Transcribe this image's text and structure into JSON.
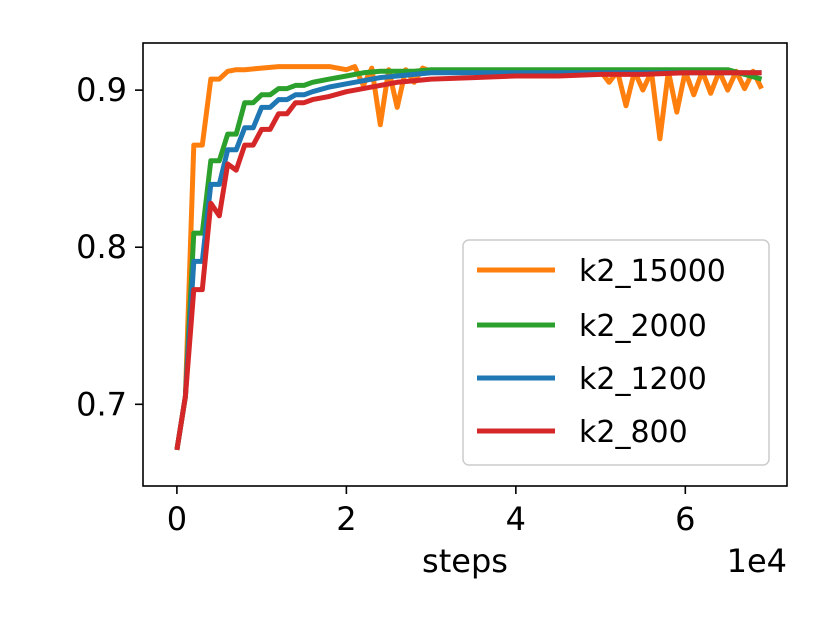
{
  "chart_data": {
    "type": "line",
    "title": "",
    "xlabel": "steps",
    "ylabel": "",
    "x_offset_label": "1e4",
    "xlim": [
      -0.4,
      7.2
    ],
    "ylim": [
      0.648,
      0.93
    ],
    "xticks": [
      0,
      2,
      4,
      6
    ],
    "xtick_labels": [
      "0",
      "2",
      "4",
      "6"
    ],
    "yticks": [
      0.7,
      0.8,
      0.9
    ],
    "ytick_labels": [
      "0.7",
      "0.8",
      "0.9"
    ],
    "grid": false,
    "legend_position": "lower-right",
    "series": [
      {
        "name": "k2_15000",
        "color": "#ff7f0e",
        "x": [
          0,
          0.1,
          0.2,
          0.3,
          0.4,
          0.5,
          0.6,
          0.7,
          0.8,
          1.0,
          1.2,
          1.4,
          1.6,
          1.8,
          2.0,
          2.1,
          2.2,
          2.3,
          2.4,
          2.5,
          2.6,
          2.7,
          2.8,
          2.9,
          3.0,
          3.5,
          4.0,
          4.5,
          5.0,
          5.1,
          5.2,
          5.3,
          5.4,
          5.5,
          5.6,
          5.7,
          5.8,
          5.9,
          6.0,
          6.1,
          6.2,
          6.3,
          6.4,
          6.5,
          6.6,
          6.7,
          6.8,
          6.9
        ],
        "values": [
          0.671,
          0.705,
          0.865,
          0.865,
          0.907,
          0.907,
          0.912,
          0.913,
          0.913,
          0.914,
          0.915,
          0.915,
          0.915,
          0.915,
          0.913,
          0.915,
          0.903,
          0.914,
          0.878,
          0.913,
          0.889,
          0.913,
          0.905,
          0.914,
          0.912,
          0.912,
          0.912,
          0.911,
          0.912,
          0.905,
          0.912,
          0.89,
          0.912,
          0.9,
          0.912,
          0.869,
          0.912,
          0.886,
          0.912,
          0.897,
          0.912,
          0.898,
          0.912,
          0.9,
          0.912,
          0.901,
          0.912,
          0.901
        ]
      },
      {
        "name": "k2_2000",
        "color": "#2ca02c",
        "x": [
          0,
          0.1,
          0.2,
          0.3,
          0.4,
          0.5,
          0.6,
          0.7,
          0.8,
          0.9,
          1.0,
          1.1,
          1.2,
          1.3,
          1.4,
          1.5,
          1.6,
          1.8,
          2.0,
          2.2,
          2.4,
          2.6,
          2.8,
          3.0,
          3.5,
          4.0,
          4.5,
          5.0,
          5.5,
          6.0,
          6.5,
          6.9
        ],
        "values": [
          0.671,
          0.705,
          0.809,
          0.809,
          0.855,
          0.855,
          0.872,
          0.872,
          0.892,
          0.892,
          0.897,
          0.897,
          0.901,
          0.901,
          0.903,
          0.903,
          0.905,
          0.907,
          0.909,
          0.911,
          0.912,
          0.912,
          0.912,
          0.913,
          0.913,
          0.913,
          0.913,
          0.913,
          0.913,
          0.913,
          0.913,
          0.907
        ]
      },
      {
        "name": "k2_1200",
        "color": "#1f77b4",
        "x": [
          0,
          0.1,
          0.2,
          0.3,
          0.4,
          0.5,
          0.6,
          0.7,
          0.8,
          0.9,
          1.0,
          1.1,
          1.2,
          1.3,
          1.4,
          1.5,
          1.6,
          1.8,
          2.0,
          2.2,
          2.4,
          2.6,
          2.8,
          3.0,
          3.5,
          4.0,
          4.5,
          5.0,
          5.5,
          6.0,
          6.5,
          6.9
        ],
        "values": [
          0.671,
          0.705,
          0.791,
          0.791,
          0.84,
          0.84,
          0.862,
          0.862,
          0.876,
          0.876,
          0.889,
          0.889,
          0.894,
          0.894,
          0.897,
          0.897,
          0.899,
          0.902,
          0.904,
          0.906,
          0.908,
          0.909,
          0.91,
          0.911,
          0.911,
          0.911,
          0.911,
          0.911,
          0.911,
          0.911,
          0.911,
          0.911
        ]
      },
      {
        "name": "k2_800",
        "color": "#d62728",
        "x": [
          0,
          0.1,
          0.2,
          0.3,
          0.4,
          0.5,
          0.6,
          0.7,
          0.8,
          0.9,
          1.0,
          1.1,
          1.2,
          1.3,
          1.4,
          1.5,
          1.6,
          1.8,
          2.0,
          2.2,
          2.4,
          2.6,
          2.8,
          3.0,
          3.5,
          4.0,
          4.5,
          5.0,
          5.5,
          6.0,
          6.5,
          6.9
        ],
        "values": [
          0.671,
          0.705,
          0.773,
          0.773,
          0.828,
          0.82,
          0.853,
          0.849,
          0.865,
          0.865,
          0.875,
          0.875,
          0.885,
          0.885,
          0.892,
          0.892,
          0.894,
          0.896,
          0.899,
          0.901,
          0.903,
          0.905,
          0.906,
          0.907,
          0.908,
          0.909,
          0.909,
          0.91,
          0.91,
          0.911,
          0.911,
          0.911
        ]
      }
    ]
  }
}
